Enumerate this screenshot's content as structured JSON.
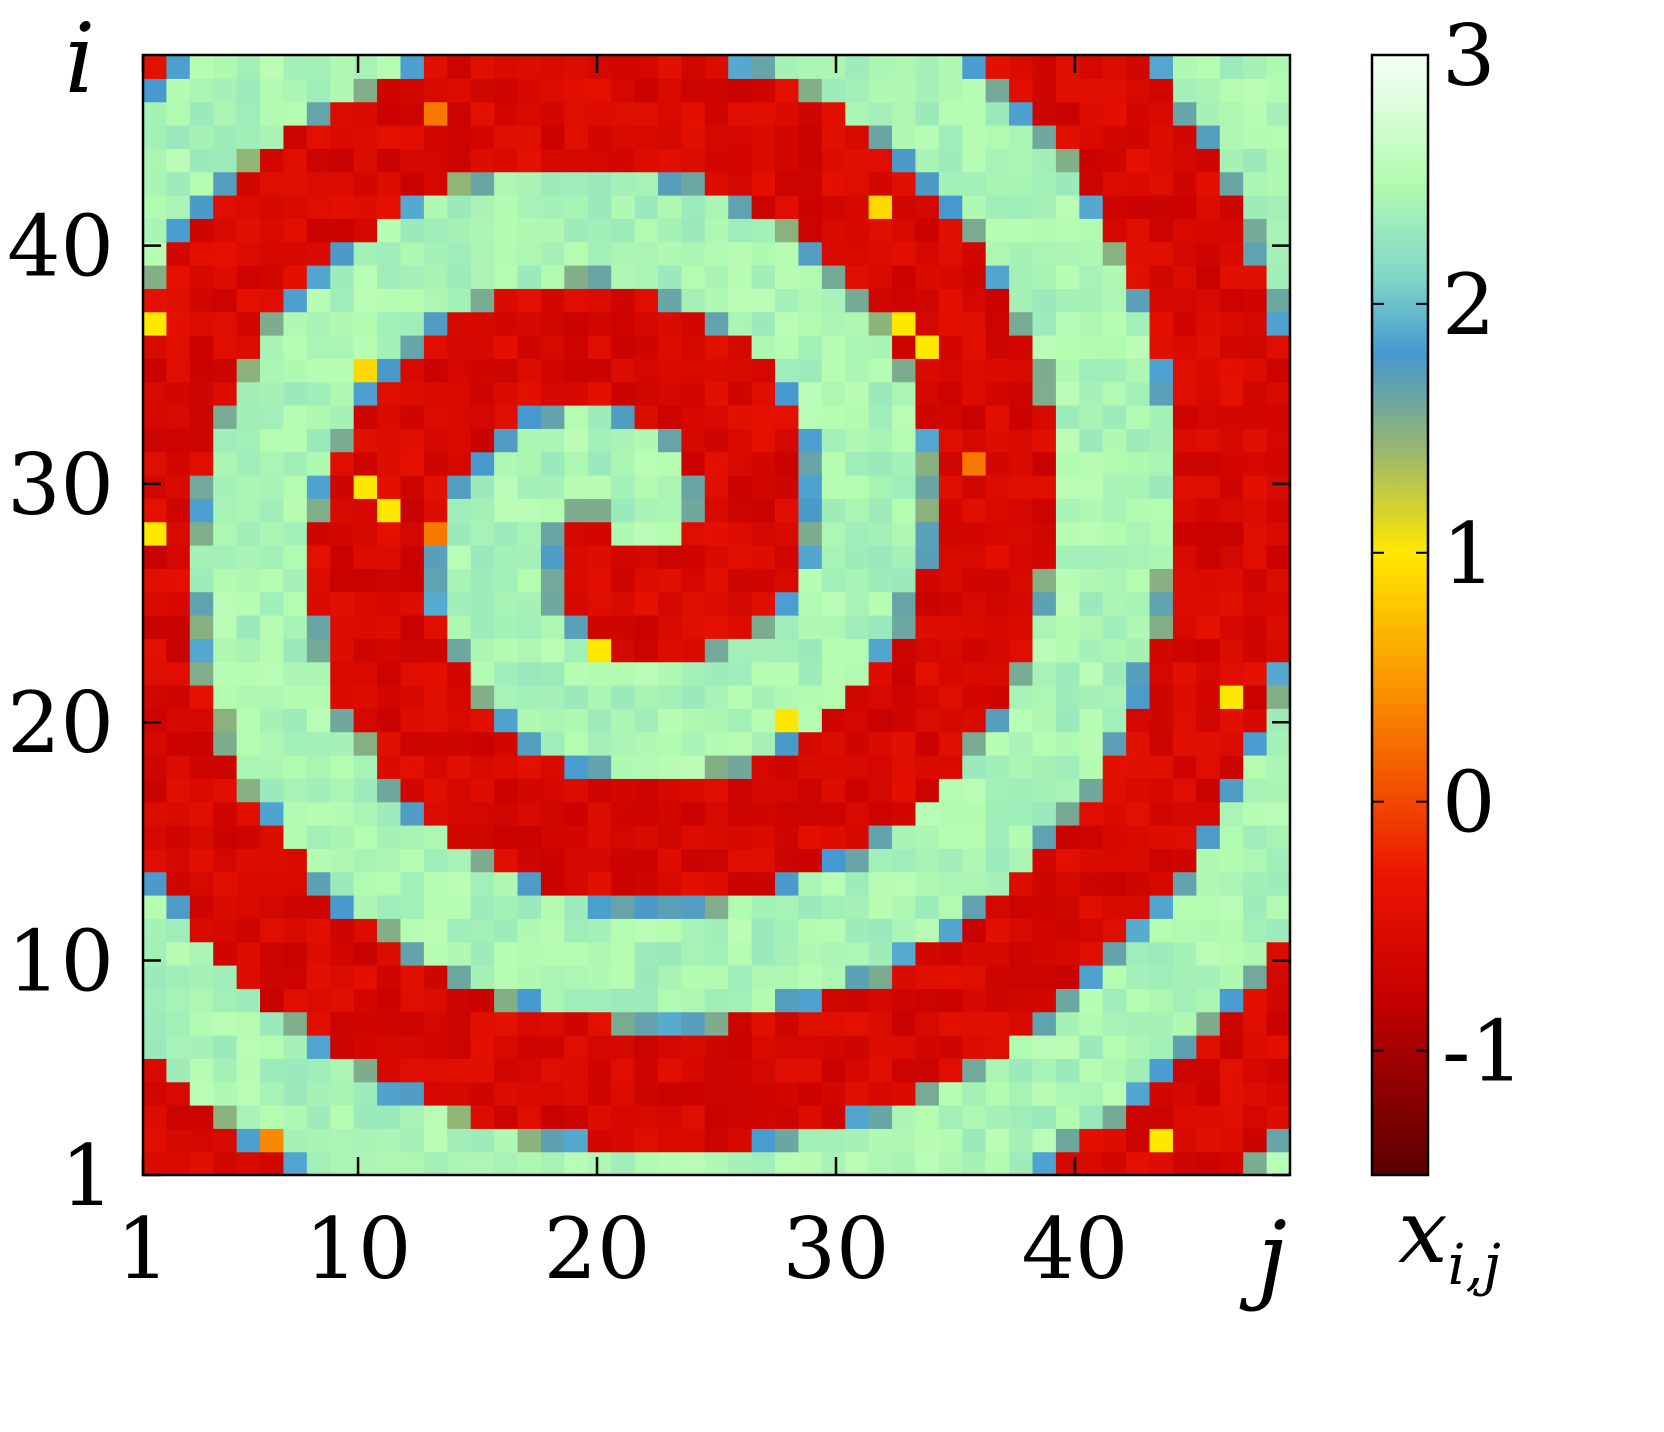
{
  "chart_data": {
    "type": "heatmap",
    "title": "",
    "xlabel": "j",
    "ylabel": "i",
    "colorbar_label": "x_{i,j}",
    "grid": false,
    "rows": 48,
    "cols": 49,
    "xlim": [
      1,
      49
    ],
    "ylim": [
      1,
      48
    ],
    "x_ticks": [
      {
        "value": 1,
        "label": "1"
      },
      {
        "value": 10,
        "label": "10"
      },
      {
        "value": 20,
        "label": "20"
      },
      {
        "value": 30,
        "label": "30"
      },
      {
        "value": 40,
        "label": "40"
      }
    ],
    "y_ticks": [
      {
        "value": 1,
        "label": "1"
      },
      {
        "value": 10,
        "label": "10"
      },
      {
        "value": 20,
        "label": "20"
      },
      {
        "value": 30,
        "label": "30"
      },
      {
        "value": 40,
        "label": "40"
      }
    ],
    "colorbar": {
      "range": [
        -1.5,
        3
      ],
      "ticks": [
        {
          "value": -1,
          "label": "-1"
        },
        {
          "value": 0,
          "label": "0"
        },
        {
          "value": 1,
          "label": "1"
        },
        {
          "value": 2,
          "label": "2"
        },
        {
          "value": 3,
          "label": "3"
        }
      ],
      "colors": [
        {
          "value": -1.5,
          "color": "#5a0000"
        },
        {
          "value": -0.8,
          "color": "#c40000"
        },
        {
          "value": -0.3,
          "color": "#ec1500"
        },
        {
          "value": 0.0,
          "color": "#f24800"
        },
        {
          "value": 0.5,
          "color": "#fa9a00"
        },
        {
          "value": 1.0,
          "color": "#ffe800"
        },
        {
          "value": 1.4,
          "color": "#9cb86a"
        },
        {
          "value": 1.8,
          "color": "#4598d0"
        },
        {
          "value": 2.1,
          "color": "#7fd6c8"
        },
        {
          "value": 2.5,
          "color": "#b4fcb0"
        },
        {
          "value": 3.0,
          "color": "#f8fff8"
        }
      ]
    },
    "pattern": {
      "description_values": "x_{i,j} field forming an outward spiral; bands alternate between about -0.6 (red) and about 2.5 (light green)",
      "center_j": 21,
      "center_i": 28,
      "wavelength": 10.5,
      "high_value": 2.55,
      "low_value": -0.6
    },
    "yellow_spots": [
      {
        "j": 10,
        "i": 30,
        "value": 1.0
      },
      {
        "j": 11,
        "i": 29,
        "value": 1.0
      },
      {
        "j": 10,
        "i": 35,
        "value": 0.9
      },
      {
        "j": 33,
        "i": 37,
        "value": 1.0
      },
      {
        "j": 34,
        "i": 36,
        "value": 1.0
      },
      {
        "j": 32,
        "i": 42,
        "value": 0.9
      },
      {
        "j": 20,
        "i": 23,
        "value": 1.0
      },
      {
        "j": 28,
        "i": 20,
        "value": 1.0
      },
      {
        "j": 44,
        "i": 2,
        "value": 1.0
      },
      {
        "j": 47,
        "i": 21,
        "value": 1.0
      },
      {
        "j": 1,
        "i": 28,
        "value": 1.0
      },
      {
        "j": 1,
        "i": 37,
        "value": 1.0
      },
      {
        "j": 13,
        "i": 28,
        "value": 0.3
      },
      {
        "j": 13,
        "i": 46,
        "value": 0.3
      },
      {
        "j": 36,
        "i": 31,
        "value": 0.3
      },
      {
        "j": 6,
        "i": 2,
        "value": 0.4
      }
    ]
  }
}
